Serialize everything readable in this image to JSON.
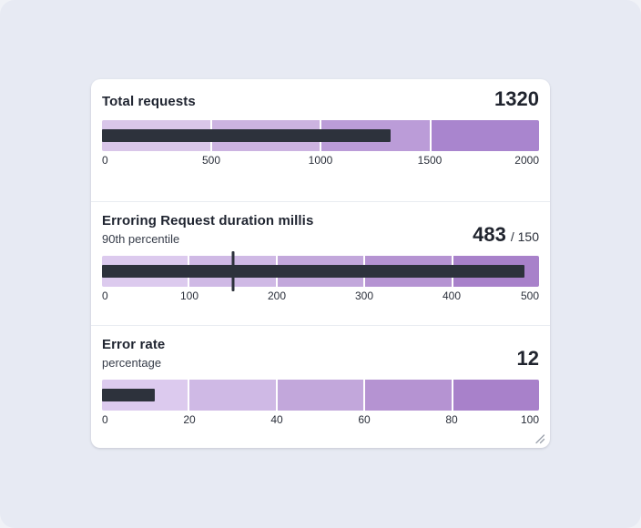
{
  "page": {
    "background": "#e7eaf3"
  },
  "card": {
    "background": "#ffffff",
    "divider_color": "#e9ecf1",
    "resize_grip_icon": "resize-grip",
    "resize_grip_color": "#9aa0ab"
  },
  "colors": {
    "measure_bar": "#2d323c",
    "target_marker": "#2d323c",
    "title_text": "#1f2430",
    "subtitle_text": "#363c49",
    "value_text": "#20242e",
    "tick_text": "#2a2f3a"
  },
  "chart_data": [
    {
      "type": "bar",
      "variant": "bullet",
      "title": "Total requests",
      "subtitle": "",
      "value": 1320,
      "value_display": "1320",
      "target": null,
      "target_display": "",
      "range": [
        0,
        2000
      ],
      "ticks": [
        0,
        500,
        1000,
        1500,
        2000
      ],
      "tick_labels": [
        "0",
        "500",
        "1000",
        "1500",
        "2000"
      ],
      "bands": [
        {
          "from": 0,
          "to": 500,
          "color": "#d9c6e9"
        },
        {
          "from": 500,
          "to": 1000,
          "color": "#ccb3e1"
        },
        {
          "from": 1000,
          "to": 1500,
          "color": "#bb9cd8"
        },
        {
          "from": 1500,
          "to": 2000,
          "color": "#a985ce"
        }
      ]
    },
    {
      "type": "bar",
      "variant": "bullet",
      "title": "Erroring Request duration millis",
      "subtitle": "90th percentile",
      "value": 483,
      "value_display": "483",
      "target": 150,
      "target_display": "/ 150",
      "range": [
        0,
        500
      ],
      "ticks": [
        0,
        100,
        200,
        300,
        400,
        500
      ],
      "tick_labels": [
        "0",
        "100",
        "200",
        "300",
        "400",
        "500"
      ],
      "bands": [
        {
          "from": 0,
          "to": 100,
          "color": "#dccaee"
        },
        {
          "from": 100,
          "to": 200,
          "color": "#cfb9e5"
        },
        {
          "from": 200,
          "to": 300,
          "color": "#c2a7db"
        },
        {
          "from": 300,
          "to": 400,
          "color": "#b593d2"
        },
        {
          "from": 400,
          "to": 500,
          "color": "#a881ca"
        }
      ]
    },
    {
      "type": "bar",
      "variant": "bullet",
      "title": "Error rate",
      "subtitle": "percentage",
      "value": 12,
      "value_display": "12",
      "target": null,
      "target_display": "",
      "range": [
        0,
        100
      ],
      "ticks": [
        0,
        20,
        40,
        60,
        80,
        100
      ],
      "tick_labels": [
        "0",
        "20",
        "40",
        "60",
        "80",
        "100"
      ],
      "bands": [
        {
          "from": 0,
          "to": 20,
          "color": "#dccaee"
        },
        {
          "from": 20,
          "to": 40,
          "color": "#cfb9e5"
        },
        {
          "from": 40,
          "to": 60,
          "color": "#c2a7db"
        },
        {
          "from": 60,
          "to": 80,
          "color": "#b593d2"
        },
        {
          "from": 80,
          "to": 100,
          "color": "#a881ca"
        }
      ]
    }
  ]
}
